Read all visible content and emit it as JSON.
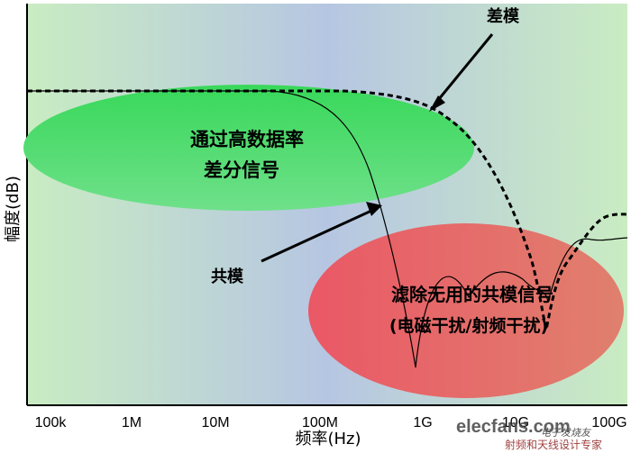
{
  "chart_data": {
    "type": "line",
    "xlabel": "频率(Hz)",
    "ylabel": "幅度(dB)",
    "x_scale": "log",
    "x_ticks": [
      "100k",
      "1M",
      "10M",
      "100M",
      "1G",
      "10G",
      "100G"
    ],
    "y_ticks": [],
    "grid": false,
    "series": [
      {
        "name": "差模",
        "style": "dashed",
        "color": "#000000",
        "points": [
          {
            "x": "100k",
            "y": 0.0
          },
          {
            "x": "1M",
            "y": 0.0
          },
          {
            "x": "10M",
            "y": 0.0
          },
          {
            "x": "100M",
            "y": 0.0
          },
          {
            "x": "300M",
            "y": -0.06
          },
          {
            "x": "1G",
            "y": -0.25
          },
          {
            "x": "3G",
            "y": -0.55
          },
          {
            "x": "8G",
            "y": -0.72
          },
          {
            "x": "12G",
            "y": -0.97
          },
          {
            "x": "30G",
            "y": -0.72
          },
          {
            "x": "100G",
            "y": -0.55
          }
        ]
      },
      {
        "name": "共模",
        "style": "solid",
        "color": "#000000",
        "points": [
          {
            "x": "100k",
            "y": 0.0
          },
          {
            "x": "10M",
            "y": 0.0
          },
          {
            "x": "100M",
            "y": -0.06
          },
          {
            "x": "300M",
            "y": -0.35
          },
          {
            "x": "1G",
            "y": -0.97
          },
          {
            "x": "3G",
            "y": -0.65
          },
          {
            "x": "12G",
            "y": -0.85
          },
          {
            "x": "30G",
            "y": -0.6
          },
          {
            "x": "100G",
            "y": -0.62
          }
        ]
      }
    ],
    "regions": [
      {
        "label_lines": [
          "通过高数据率",
          "差分信号"
        ],
        "color": "#3cdc5a"
      },
      {
        "label_lines": [
          "滤除无用的共模信号",
          "(电磁干扰/射频干扰)"
        ],
        "color": "#e45c6a"
      }
    ],
    "annotations": [
      {
        "text": "差模",
        "points_to": "差模"
      },
      {
        "text": "共模",
        "points_to": "共模"
      }
    ]
  },
  "watermark": {
    "logo_text": "elecfans.com",
    "logo_sub": "电子发烧友",
    "logo_cn": "射频和天线设计专家"
  }
}
